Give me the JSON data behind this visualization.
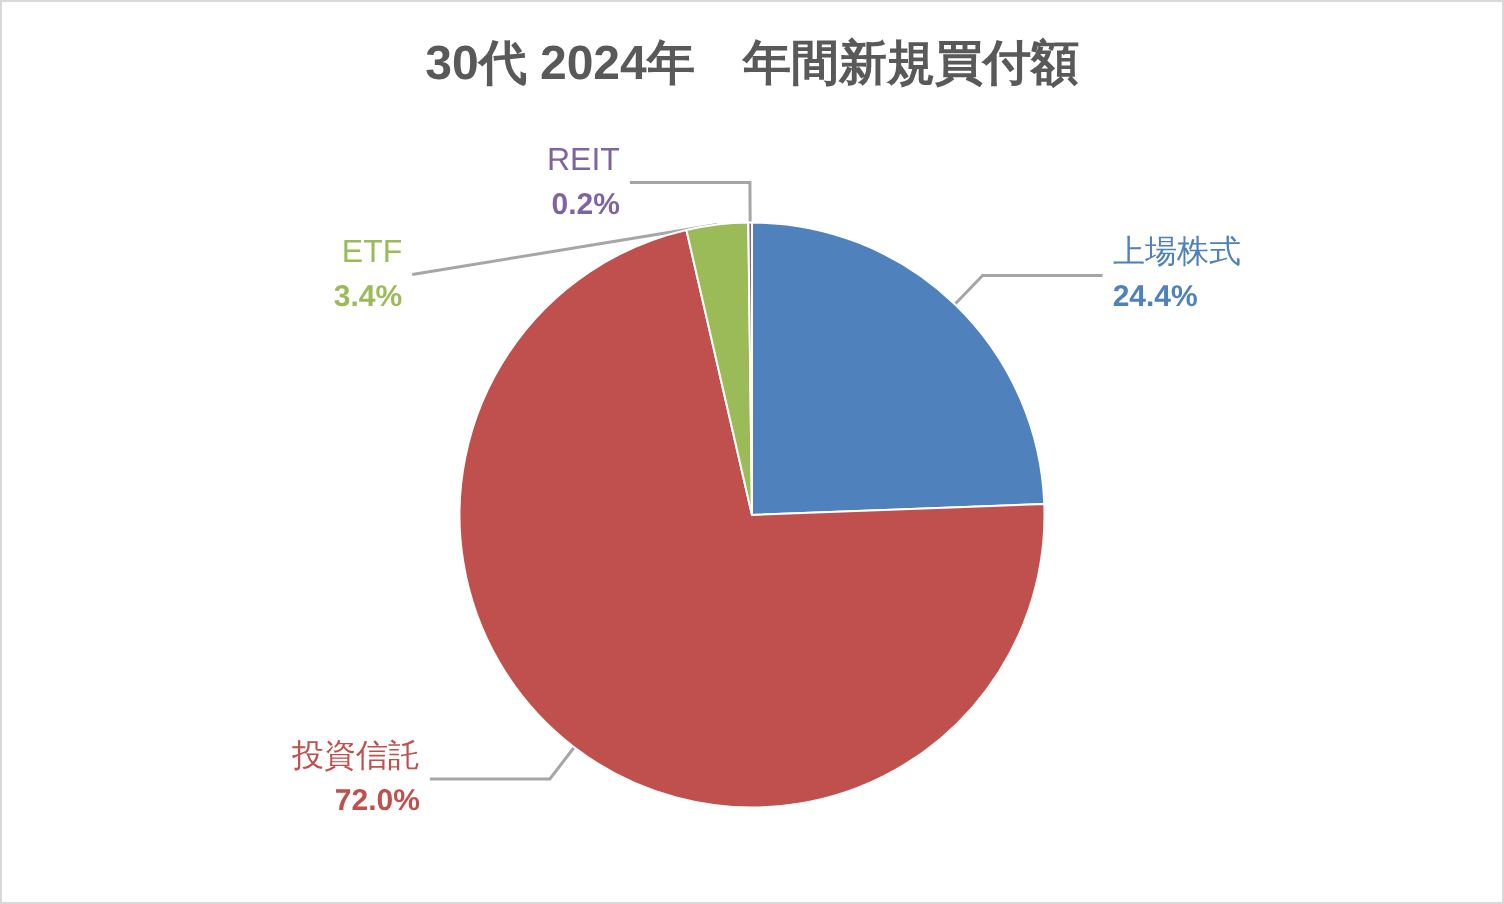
{
  "chart_data": {
    "type": "pie",
    "title": "30代 2024年　年間新規買付額",
    "categories": [
      "上場株式",
      "投資信託",
      "ETF",
      "REIT"
    ],
    "values": [
      24.4,
      72.0,
      3.4,
      0.2
    ],
    "colors": [
      "#4f81bd",
      "#c0504d",
      "#9bbb59",
      "#8064a2"
    ],
    "value_labels": [
      "24.4%",
      "72.0%",
      "3.4%",
      "0.2%"
    ],
    "legend": false
  }
}
